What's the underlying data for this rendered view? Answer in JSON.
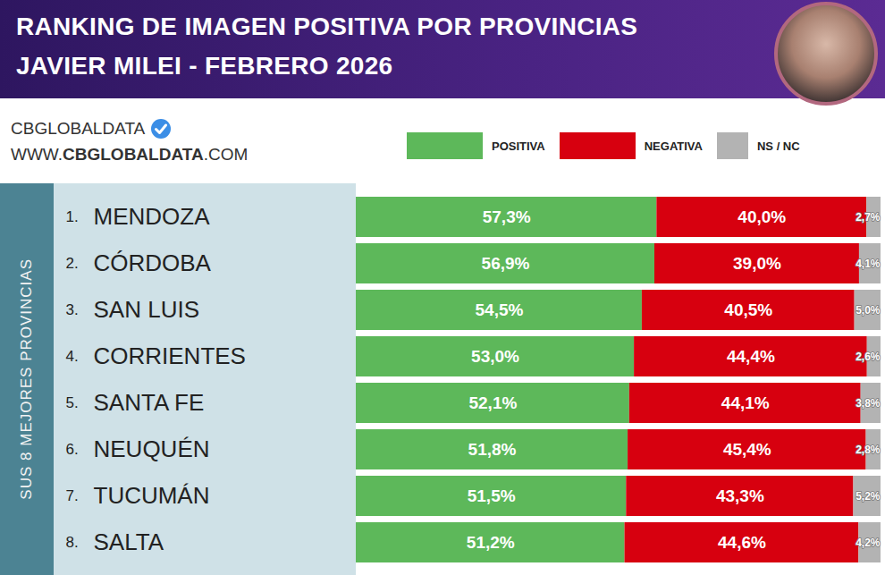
{
  "chart_data": {
    "type": "bar",
    "orientation": "horizontal",
    "stacked": true,
    "data_labels": true,
    "tick_labels": false,
    "legend": "top",
    "title": "RANKING DE IMAGEN POSITIVA POR PROVINCIAS",
    "subtitle": "JAVIER MILEI - FEBRERO 2026",
    "source": "CBGLOBALDATA",
    "url": "WWW.CBGLOBALDATA.COM",
    "side_label": "SUS 8 MEJORES PROVINCIAS",
    "ranks": [
      "1.",
      "2.",
      "3.",
      "4.",
      "5.",
      "6.",
      "7.",
      "8."
    ],
    "categories": [
      "MENDOZA",
      "CÓRDOBA",
      "SAN LUIS",
      "CORRIENTES",
      "SANTA FE",
      "NEUQUÉN",
      "TUCUMÁN",
      "SALTA"
    ],
    "xlim": [
      0,
      100
    ],
    "series": [
      {
        "name": "POSITIVA",
        "color": "#5db85a",
        "values": [
          57.3,
          56.9,
          54.5,
          53.0,
          52.1,
          51.8,
          51.5,
          51.2
        ],
        "value_labels": [
          "57,3%",
          "56,9%",
          "54,5%",
          "53,0%",
          "52,1%",
          "51,8%",
          "51,5%",
          "51,2%"
        ]
      },
      {
        "name": "NEGATIVA",
        "color": "#d7000f",
        "values": [
          40.0,
          39.0,
          40.5,
          44.4,
          44.1,
          45.4,
          43.3,
          44.6
        ],
        "value_labels": [
          "40,0%",
          "39,0%",
          "40,5%",
          "44,4%",
          "44,1%",
          "45,4%",
          "43,3%",
          "44,6%"
        ]
      },
      {
        "name": "NS / NC",
        "color": "#b3b3b3",
        "values": [
          2.7,
          4.1,
          5.0,
          2.6,
          3.8,
          2.8,
          5.2,
          4.2
        ],
        "value_labels": [
          "2,7%",
          "4,1%",
          "5,0%",
          "2,6%",
          "3,8%",
          "2,8%",
          "5,2%",
          "4,2%"
        ]
      }
    ]
  }
}
